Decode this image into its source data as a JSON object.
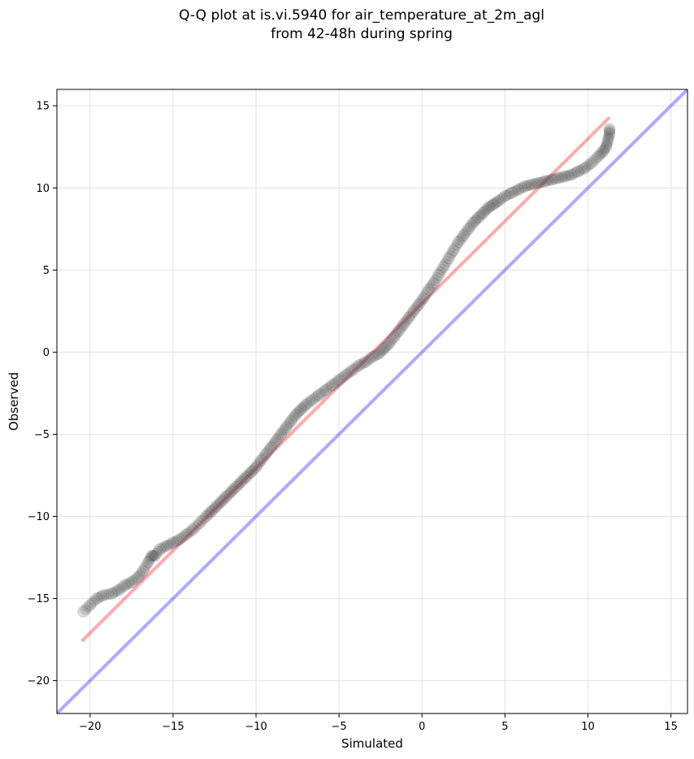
{
  "chart_data": {
    "type": "scatter",
    "title_line1": "Q-Q plot at is.vi.5940 for air_temperature_at_2m_agl",
    "title_line2": "from 42-48h during spring",
    "xlabel": "Simulated",
    "ylabel": "Observed",
    "xlim": [
      -22,
      16
    ],
    "ylim": [
      -22,
      16
    ],
    "x_ticks": [
      -20,
      -15,
      -10,
      -5,
      0,
      5,
      10,
      15
    ],
    "y_ticks": [
      -20,
      -15,
      -10,
      -5,
      0,
      5,
      10,
      15
    ],
    "x_tick_labels": [
      "−20",
      "−15",
      "−10",
      "−5",
      "0",
      "5",
      "10",
      "15"
    ],
    "y_tick_labels": [
      "−20",
      "−15",
      "−10",
      "−5",
      "0",
      "5",
      "10",
      "15"
    ],
    "grid": true,
    "colors": {
      "points": "#444444",
      "fit_line": "#ff0000",
      "identity_line": "#0000ff"
    },
    "fit_line": {
      "x": [
        -20.5,
        11.3
      ],
      "y": [
        -17.6,
        14.3
      ]
    },
    "identity_line": {
      "x": [
        -22,
        16
      ],
      "y": [
        -22,
        16
      ]
    },
    "points": {
      "x": [
        -20.4,
        -20.0,
        -19.6,
        -19.2,
        -18.7,
        -18.3,
        -17.9,
        -17.5,
        -17.1,
        -16.8,
        -16.5,
        -16.3,
        -16.1,
        -15.8,
        -15.4,
        -15.0,
        -14.6,
        -14.2,
        -13.8,
        -13.4,
        -13.0,
        -12.7,
        -12.4,
        -12.1,
        -11.8,
        -11.5,
        -11.2,
        -10.9,
        -10.6,
        -10.3,
        -10.0,
        -9.7,
        -9.4,
        -9.1,
        -8.8,
        -8.5,
        -8.2,
        -7.9,
        -7.6,
        -7.3,
        -7.0,
        -6.6,
        -6.2,
        -5.8,
        -5.4,
        -5.0,
        -4.6,
        -4.2,
        -3.8,
        -3.4,
        -3.0,
        -2.6,
        -2.3,
        -2.0,
        -1.7,
        -1.4,
        -1.1,
        -0.8,
        -0.5,
        -0.2,
        0.1,
        0.4,
        0.7,
        1.0,
        1.3,
        1.6,
        1.9,
        2.2,
        2.5,
        2.8,
        3.1,
        3.4,
        3.7,
        4.0,
        4.3,
        4.6,
        5.0,
        5.4,
        5.8,
        6.2,
        6.6,
        7.0,
        7.4,
        7.8,
        8.2,
        8.6,
        9.0,
        9.4,
        9.8,
        10.2,
        10.6,
        10.9,
        11.1,
        11.2,
        11.3,
        11.3
      ],
      "y": [
        -15.8,
        -15.4,
        -15.0,
        -14.8,
        -14.7,
        -14.5,
        -14.2,
        -14.0,
        -13.7,
        -13.3,
        -12.8,
        -12.4,
        -12.4,
        -12.0,
        -11.8,
        -11.6,
        -11.4,
        -11.1,
        -10.8,
        -10.4,
        -10.0,
        -9.7,
        -9.4,
        -9.1,
        -8.8,
        -8.5,
        -8.2,
        -7.9,
        -7.6,
        -7.3,
        -7.0,
        -6.6,
        -6.2,
        -5.8,
        -5.4,
        -5.0,
        -4.6,
        -4.2,
        -3.8,
        -3.5,
        -3.2,
        -2.9,
        -2.6,
        -2.3,
        -2.0,
        -1.7,
        -1.4,
        -1.1,
        -0.8,
        -0.6,
        -0.3,
        -0.1,
        0.2,
        0.5,
        0.9,
        1.3,
        1.7,
        2.1,
        2.5,
        2.9,
        3.3,
        3.8,
        4.2,
        4.7,
        5.2,
        5.7,
        6.2,
        6.7,
        7.1,
        7.5,
        7.9,
        8.2,
        8.5,
        8.8,
        9.0,
        9.2,
        9.5,
        9.7,
        9.9,
        10.1,
        10.2,
        10.3,
        10.4,
        10.5,
        10.6,
        10.7,
        10.8,
        11.0,
        11.2,
        11.5,
        11.9,
        12.2,
        12.5,
        12.9,
        13.3,
        13.6
      ]
    }
  }
}
